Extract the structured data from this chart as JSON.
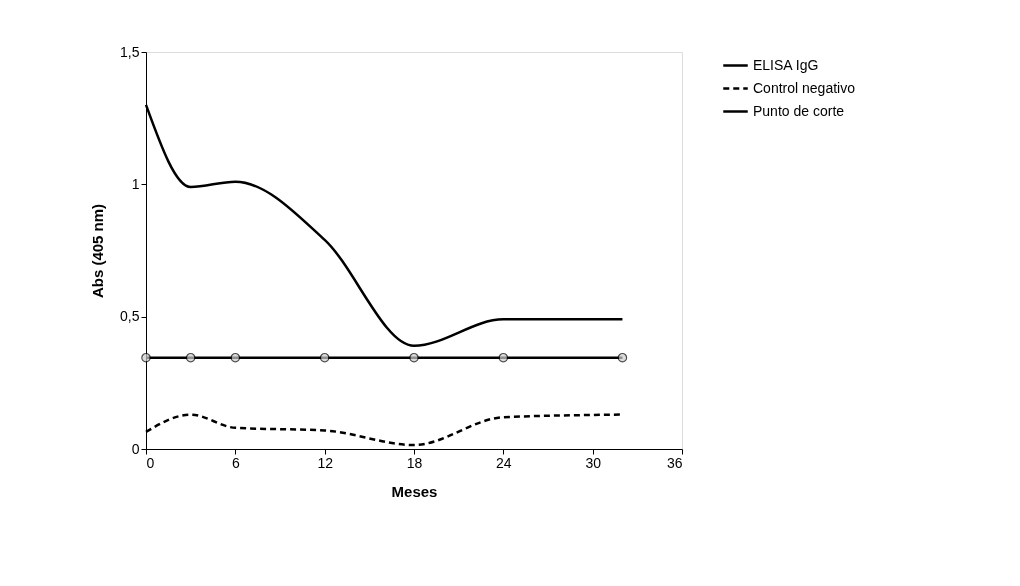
{
  "chart_data": {
    "type": "line",
    "xlabel": "Meses",
    "ylabel": "Abs (405 nm)",
    "x": [
      0,
      3,
      6,
      12,
      18,
      24,
      32
    ],
    "series": [
      {
        "name": "ELISA IgG",
        "color": "#000000",
        "values": [
          1.3,
          0.99,
          1.01,
          0.79,
          0.39,
          0.49,
          0.49
        ],
        "line_style": "solid",
        "marker": "none"
      },
      {
        "name": "Control negativo",
        "color": "#000000",
        "values": [
          0.065,
          0.13,
          0.08,
          0.07,
          0.015,
          0.12,
          0.13
        ],
        "line_style": "dashed",
        "marker": "none"
      },
      {
        "name": "Punto de corte",
        "color": "#000000",
        "values": [
          0.345,
          0.345,
          0.345,
          0.345,
          0.345,
          0.345,
          0.345
        ],
        "line_style": "solid",
        "marker": "circle"
      }
    ],
    "xlim": [
      0,
      36
    ],
    "xticks": [
      0,
      6,
      12,
      18,
      24,
      30,
      36
    ],
    "ylim": [
      0,
      1.5
    ],
    "yticks": [
      0,
      {
        "value": 0.5,
        "label": "0,5"
      },
      1,
      {
        "value": 1.5,
        "label": "1,5"
      }
    ],
    "grid": false,
    "legend": "right"
  }
}
